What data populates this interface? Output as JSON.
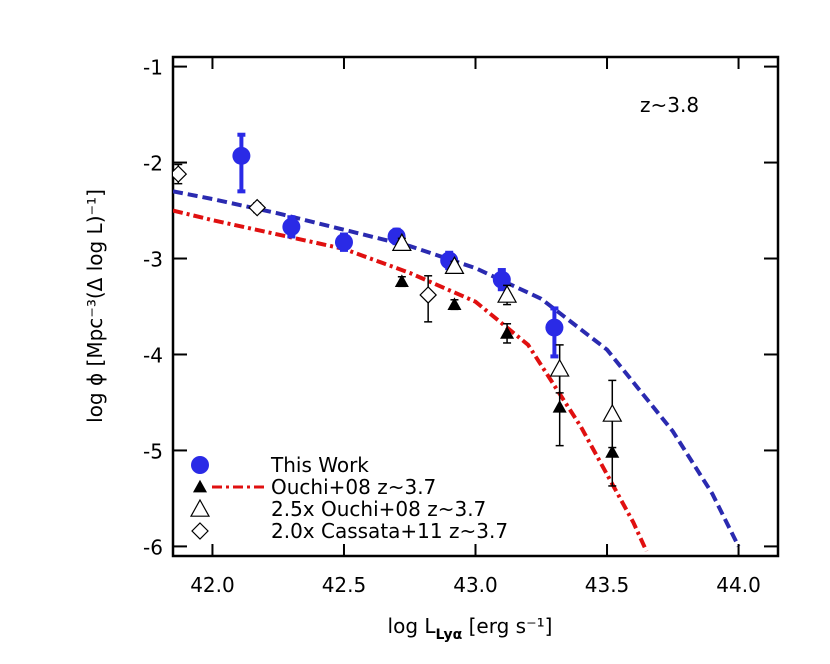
{
  "chart_data": {
    "type": "scatter",
    "annotation": "z~3.8",
    "xlabel": [
      "log L",
      "Lyα",
      " [erg s⁻¹]"
    ],
    "ylabel": "log ϕ [Mpc⁻³(Δ log L)⁻¹]",
    "xlim": [
      41.85,
      44.15
    ],
    "ylim": [
      -6.1,
      -0.9
    ],
    "xticks": [
      {
        "value": 42.0,
        "label": "42.0"
      },
      {
        "value": 42.5,
        "label": "42.5"
      },
      {
        "value": 43.0,
        "label": "43.0"
      },
      {
        "value": 43.5,
        "label": "43.5"
      },
      {
        "value": 44.0,
        "label": "44.0"
      }
    ],
    "yticks": [
      -1,
      -2,
      -3,
      -4,
      -5,
      -6
    ],
    "series": [
      {
        "name": "This Work",
        "marker": "circle",
        "color": "#2a2ae6",
        "x": [
          42.11,
          42.3,
          42.5,
          42.7,
          42.9,
          43.1,
          43.3
        ],
        "y": [
          -1.93,
          -2.67,
          -2.83,
          -2.77,
          -3.02,
          -3.22,
          -3.72
        ],
        "yerr_minus": [
          0.37,
          0.1,
          0.08,
          0.07,
          0.08,
          0.1,
          0.3
        ],
        "yerr_plus": [
          0.22,
          0.1,
          0.08,
          0.07,
          0.08,
          0.1,
          0.2
        ]
      },
      {
        "name": "Ouchi+08 z~3.7",
        "marker": "triangle-filled",
        "color": "#000000",
        "x": [
          42.72,
          42.92,
          43.12,
          43.32,
          43.52
        ],
        "y": [
          -3.24,
          -3.48,
          -3.78,
          -4.55,
          -5.02
        ],
        "yerr_minus": [
          0.05,
          0.05,
          0.1,
          0.4,
          0.35
        ],
        "yerr_plus": [
          0.05,
          0.05,
          0.1,
          0.35,
          0.35
        ]
      },
      {
        "name": "2.5x Ouchi+08 z~3.7",
        "marker": "triangle-open",
        "color": "#000000",
        "x": [
          42.72,
          42.92,
          43.12,
          43.32,
          43.52
        ],
        "y": [
          -2.84,
          -3.08,
          -3.38,
          -4.15,
          -4.62
        ],
        "yerr_minus": [
          0.05,
          0.05,
          0.1,
          0.25,
          0.35
        ],
        "yerr_plus": [
          0.05,
          0.05,
          0.1,
          0.25,
          0.35
        ]
      },
      {
        "name": "2.0x Cassata+11 z~3.7",
        "marker": "diamond",
        "color": "#000000",
        "x": [
          41.87,
          42.17,
          42.82
        ],
        "y": [
          -2.12,
          -2.47,
          -3.38
        ],
        "yerr_minus": [
          0.1,
          0.05,
          0.28
        ],
        "yerr_plus": [
          0.1,
          0.05,
          0.2
        ]
      }
    ],
    "curves": [
      {
        "color": "#2a2ab0",
        "style": "dashed",
        "x": [
          41.85,
          42.0,
          42.25,
          42.5,
          42.75,
          43.0,
          43.25,
          43.5,
          43.75,
          43.9,
          44.0
        ],
        "y": [
          -2.3,
          -2.38,
          -2.53,
          -2.7,
          -2.87,
          -3.1,
          -3.42,
          -3.95,
          -4.8,
          -5.45,
          -6.0
        ]
      },
      {
        "color": "#e01010",
        "style": "dashdot",
        "x": [
          41.85,
          42.0,
          42.25,
          42.5,
          42.75,
          43.0,
          43.2,
          43.4,
          43.5,
          43.6,
          43.65
        ],
        "y": [
          -2.5,
          -2.6,
          -2.75,
          -2.9,
          -3.15,
          -3.45,
          -3.9,
          -4.75,
          -5.25,
          -5.75,
          -6.05
        ]
      }
    ]
  }
}
